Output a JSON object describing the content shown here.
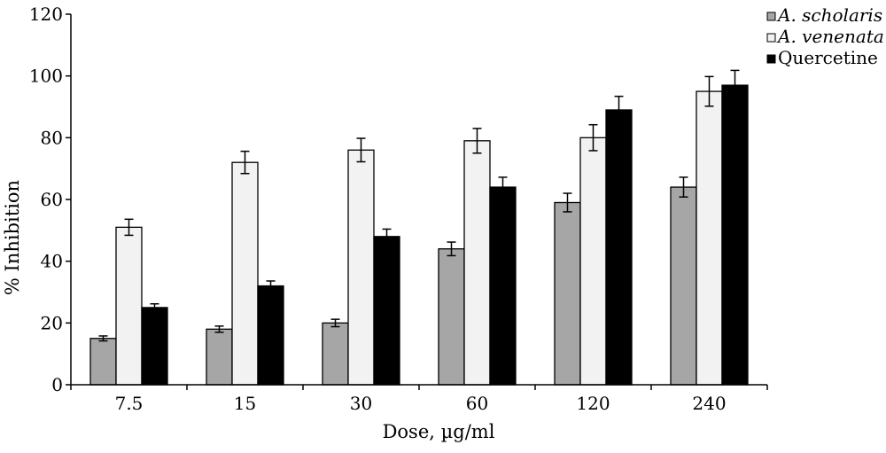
{
  "chart_data": {
    "type": "bar",
    "title": "",
    "xlabel": "Dose, µg/ml",
    "ylabel": "% Inhibition",
    "ylim": [
      0,
      120
    ],
    "yticks": [
      0,
      20,
      40,
      60,
      80,
      100,
      120
    ],
    "grid": false,
    "legend_position": "top-right",
    "categories": [
      "7.5",
      "15",
      "30",
      "60",
      "120",
      "240"
    ],
    "series": [
      {
        "name": "A. scholaris",
        "italic": true,
        "color": "#a6a6a6",
        "values": [
          15,
          18,
          20,
          44,
          59,
          64
        ],
        "errors": [
          0.8,
          1.0,
          1.2,
          2.2,
          3.0,
          3.2
        ]
      },
      {
        "name": "A. venenata",
        "italic": true,
        "color": "#f2f2f2",
        "values": [
          51,
          72,
          76,
          79,
          80,
          95
        ],
        "errors": [
          2.6,
          3.6,
          3.8,
          4.0,
          4.2,
          4.8
        ]
      },
      {
        "name": "Quercetine",
        "italic": false,
        "color": "#000000",
        "values": [
          25,
          32,
          48,
          64,
          89,
          97
        ],
        "errors": [
          1.2,
          1.6,
          2.4,
          3.2,
          4.4,
          4.8
        ]
      }
    ]
  }
}
